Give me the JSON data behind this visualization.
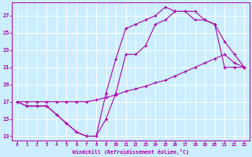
{
  "xlabel": "Windchill (Refroidissement éolien,°C)",
  "bg_color": "#cceeff",
  "line_color": "#aa00aa",
  "grid_color": "#ffffff",
  "xlim": [
    -0.5,
    23.5
  ],
  "ylim": [
    12.5,
    28.5
  ],
  "xticks": [
    0,
    1,
    2,
    3,
    4,
    5,
    6,
    7,
    8,
    9,
    10,
    11,
    12,
    13,
    14,
    15,
    16,
    17,
    18,
    19,
    20,
    21,
    22,
    23
  ],
  "yticks": [
    13,
    15,
    17,
    19,
    21,
    23,
    25,
    27
  ],
  "line1_x": [
    0,
    1,
    2,
    3,
    4,
    5,
    6,
    7,
    8,
    9,
    10,
    11,
    12,
    13,
    14,
    15,
    16,
    17,
    18,
    19,
    20,
    21,
    22,
    23
  ],
  "line1_y": [
    17.0,
    16.5,
    16.5,
    16.5,
    15.5,
    14.5,
    13.5,
    13.0,
    13.0,
    18.0,
    22.0,
    25.5,
    26.0,
    26.5,
    27.0,
    28.0,
    27.5,
    27.5,
    27.5,
    26.5,
    26.0,
    21.0,
    21.0,
    21.0
  ],
  "line2_x": [
    0,
    1,
    2,
    3,
    4,
    5,
    6,
    7,
    8,
    9,
    10,
    11,
    12,
    13,
    14,
    15,
    16,
    17,
    18,
    19,
    20,
    21,
    22,
    23
  ],
  "line2_y": [
    17.0,
    16.5,
    16.5,
    16.5,
    15.5,
    14.5,
    13.5,
    13.0,
    13.0,
    15.0,
    18.0,
    22.5,
    22.5,
    23.5,
    26.0,
    26.5,
    27.5,
    27.5,
    26.5,
    26.5,
    26.0,
    24.0,
    22.5,
    21.0
  ],
  "line3_x": [
    0,
    1,
    2,
    3,
    4,
    5,
    6,
    7,
    8,
    9,
    10,
    11,
    12,
    13,
    14,
    15,
    16,
    17,
    18,
    19,
    20,
    21,
    22,
    23
  ],
  "line3_y": [
    17.0,
    17.0,
    17.0,
    17.0,
    17.0,
    17.0,
    17.0,
    17.0,
    17.2,
    17.5,
    17.8,
    18.2,
    18.5,
    18.8,
    19.2,
    19.5,
    20.0,
    20.5,
    21.0,
    21.5,
    22.0,
    22.5,
    21.5,
    21.0
  ]
}
